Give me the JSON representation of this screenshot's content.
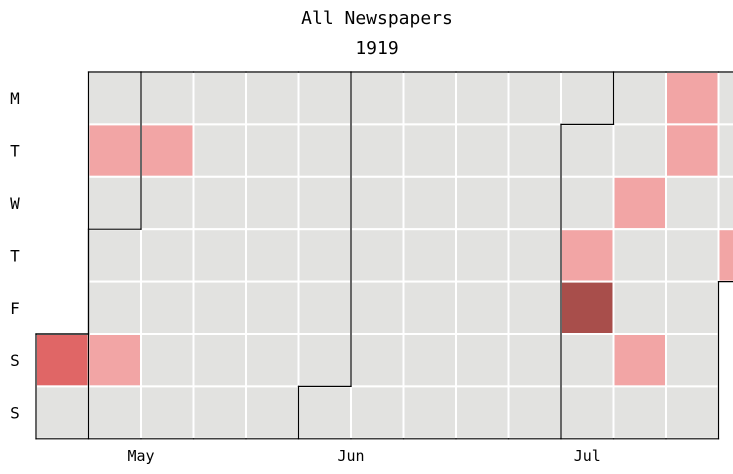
{
  "chart_data": {
    "type": "heatmap",
    "title": "All Newspapers",
    "subtitle": "1919",
    "weekday_labels": [
      "M",
      "T",
      "W",
      "T",
      "F",
      "S",
      "S"
    ],
    "month_labels": [
      {
        "label": "May",
        "week": 2
      },
      {
        "label": "Jun",
        "week": 6
      },
      {
        "label": "Jul",
        "week": 10.5
      }
    ],
    "weeks": [
      "1919-04-21",
      "1919-04-28",
      "1919-05-05",
      "1919-05-12",
      "1919-05-19",
      "1919-05-26",
      "1919-06-02",
      "1919-06-09",
      "1919-06-16",
      "1919-06-23",
      "1919-06-30",
      "1919-07-07",
      "1919-07-14",
      "1919-07-21"
    ],
    "date_range": [
      "1919-04-26",
      "1919-07-24"
    ],
    "month_boundaries": [
      "1919-05-01",
      "1919-06-01",
      "1919-07-01"
    ],
    "level_colors": [
      "#e2e2e0",
      "#f2a5a5",
      "#e06666",
      "#a84e4b"
    ],
    "values": [
      {
        "date": "1919-04-26",
        "level": 2
      },
      {
        "date": "1919-04-29",
        "level": 1
      },
      {
        "date": "1919-05-03",
        "level": 1
      },
      {
        "date": "1919-05-06",
        "level": 1
      },
      {
        "date": "1919-07-03",
        "level": 1
      },
      {
        "date": "1919-07-04",
        "level": 3
      },
      {
        "date": "1919-07-09",
        "level": 1
      },
      {
        "date": "1919-07-12",
        "level": 1
      },
      {
        "date": "1919-07-14",
        "level": 1
      },
      {
        "date": "1919-07-15",
        "level": 1
      },
      {
        "date": "1919-07-24",
        "level": 1
      }
    ]
  }
}
